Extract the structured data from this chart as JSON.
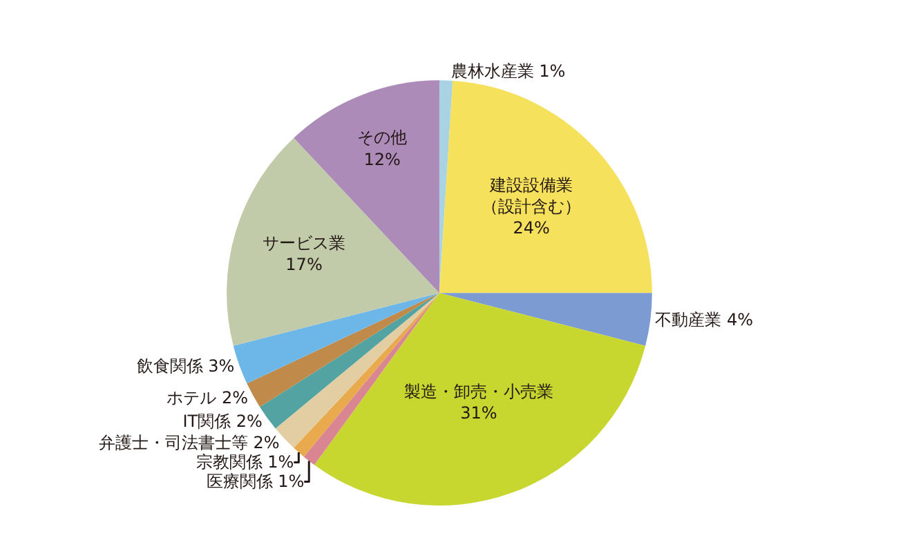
{
  "chart_data": {
    "type": "pie",
    "categories": [
      "農林水産業",
      "建設設備業（設計含む）",
      "不動産業",
      "製造・卸売・小売業",
      "医療関係",
      "宗教関係",
      "弁護士・司法書士等",
      "IT関係",
      "ホテル",
      "飲食関係",
      "サービス業",
      "その他"
    ],
    "values": [
      1,
      24,
      4,
      31,
      1,
      1,
      2,
      2,
      2,
      3,
      17,
      12
    ],
    "colors": [
      "#a9d3e3",
      "#f5e15c",
      "#7c9bd3",
      "#c8d72f",
      "#d98592",
      "#e8aa4c",
      "#e3cea3",
      "#53a3a2",
      "#c08b4a",
      "#6cb7e8",
      "#c2cba9",
      "#ad8bb9"
    ],
    "value_labels": [
      "1%",
      "24%",
      "4%",
      "31%",
      "1%",
      "1%",
      "2%",
      "2%",
      "2%",
      "3%",
      "17%",
      "12%"
    ],
    "legend": false
  }
}
